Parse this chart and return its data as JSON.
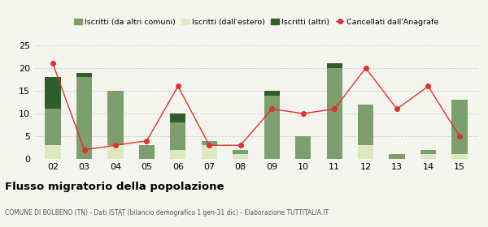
{
  "years": [
    "02",
    "03",
    "04",
    "05",
    "06",
    "07",
    "08",
    "09",
    "10",
    "11",
    "12",
    "13",
    "14",
    "15"
  ],
  "iscritti_estero": [
    3,
    0,
    3,
    0,
    2,
    3,
    1,
    0,
    0,
    0,
    3,
    0,
    1,
    1
  ],
  "iscritti_comuni": [
    8,
    18,
    12,
    3,
    6,
    1,
    1,
    14,
    5,
    20,
    9,
    1,
    1,
    12
  ],
  "iscritti_altri": [
    7,
    1,
    0,
    0,
    2,
    0,
    0,
    1,
    0,
    1,
    0,
    0,
    0,
    0
  ],
  "cancellati": [
    21,
    2,
    3,
    4,
    16,
    3,
    3,
    11,
    10,
    11,
    20,
    11,
    16,
    5
  ],
  "color_comuni": "#7e9e6e",
  "color_estero": "#dde8c0",
  "color_altri": "#2e5e2e",
  "color_cancellati": "#e03030",
  "color_grid": "#cccccc",
  "color_bg": "#f5f5f0",
  "ylim": [
    0,
    25
  ],
  "yticks": [
    0,
    5,
    10,
    15,
    20,
    25
  ],
  "title": "Flusso migratorio della popolazione",
  "subtitle": "COMUNE DI BOLBENO (TN) - Dati ISTAT (bilancio demografico 1 gen-31 dic) - Elaborazione TUTTITALIA.IT",
  "legend_labels": [
    "Iscritti (da altri comuni)",
    "Iscritti (dall'estero)",
    "Iscritti (altri)",
    "Cancellati dall'Anagrafe"
  ]
}
